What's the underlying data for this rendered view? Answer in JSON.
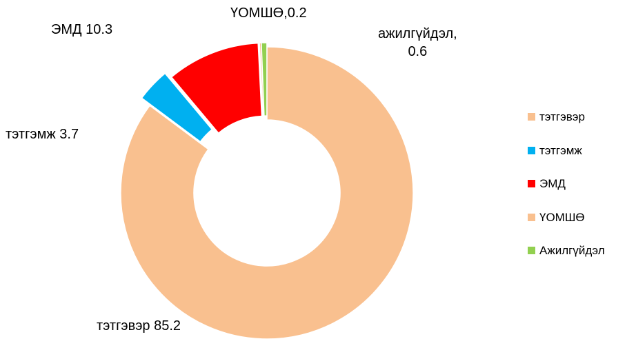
{
  "chart_data": {
    "type": "donut",
    "categories": [
      "тэтгэвэр",
      "тэтгэмж",
      "ЭМД",
      "ҮОМШӨ",
      "Ажилгүйдэл"
    ],
    "values": [
      85.2,
      3.7,
      10.3,
      0.2,
      0.6
    ],
    "value_labels": [
      "тэтгэвэр  85.2",
      "тэтгэмж 3.7",
      "ЭМД 10.3",
      "ҮОМШӨ,0.2",
      "ажилгүйдэл,\n0.6"
    ],
    "colors": [
      "#f9c08f",
      "#00b0f0",
      "#ff0000",
      "#f9c08f",
      "#92d050"
    ],
    "legend": "right"
  }
}
